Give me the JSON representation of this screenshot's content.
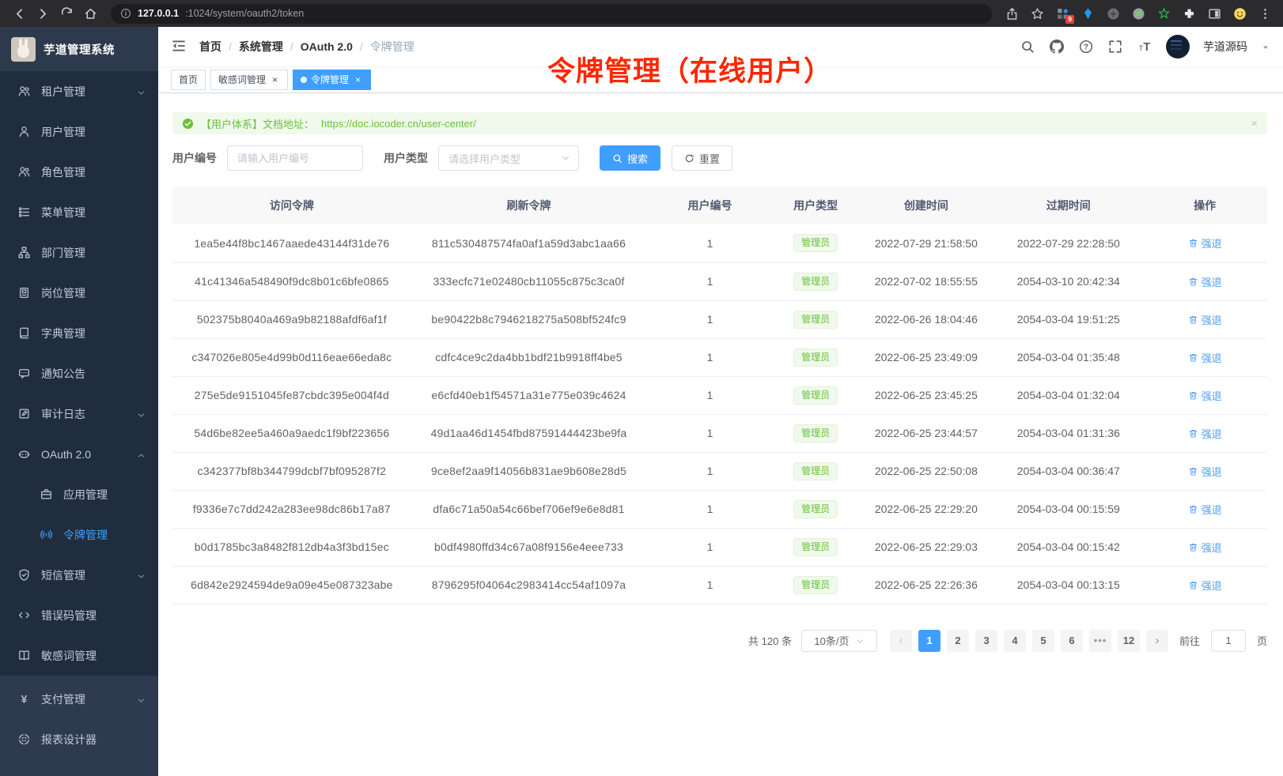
{
  "browser": {
    "url_host": "127.0.0.1",
    "url_path": ":1024/system/oauth2/token",
    "nav_icons": [
      "back-icon",
      "forward-icon",
      "reload-icon",
      "home-icon"
    ],
    "info_icon": "info-icon",
    "toolbar_icons": [
      "share-icon",
      "bookmark-star-icon",
      "extensions-badge-icon",
      "kite-icon",
      "dark-circle-icon",
      "record-circle-icon",
      "green-star-icon",
      "puzzle-icon",
      "split-screen-icon",
      "profile-smiley-icon",
      "overflow-menu-icon"
    ],
    "extensions_badge": "9"
  },
  "sidebar": {
    "logo_title": "芋道管理系统",
    "menu": [
      {
        "label": "租户管理",
        "icon": "tenant-users-icon",
        "chevron": "down"
      },
      {
        "label": "用户管理",
        "icon": "user-icon"
      },
      {
        "label": "角色管理",
        "icon": "role-icon"
      },
      {
        "label": "菜单管理",
        "icon": "menu-tree-icon"
      },
      {
        "label": "部门管理",
        "icon": "dept-icon"
      },
      {
        "label": "岗位管理",
        "icon": "post-icon"
      },
      {
        "label": "字典管理",
        "icon": "dict-icon"
      },
      {
        "label": "通知公告",
        "icon": "notice-icon"
      },
      {
        "label": "审计日志",
        "icon": "audit-icon",
        "chevron": "down"
      },
      {
        "label": "OAuth 2.0",
        "icon": "oauth-icon",
        "chevron": "up"
      },
      {
        "label": "应用管理",
        "icon": "app-icon",
        "sub": true
      },
      {
        "label": "令牌管理",
        "icon": "token-icon",
        "sub": true,
        "active": true
      },
      {
        "label": "短信管理",
        "icon": "sms-icon",
        "chevron": "down"
      },
      {
        "label": "错误码管理",
        "icon": "errcode-icon"
      },
      {
        "label": "敏感词管理",
        "icon": "sensitive-icon"
      },
      {
        "label": "支付管理",
        "icon": "pay-icon",
        "chevron": "down",
        "section": "light"
      },
      {
        "label": "报表设计器",
        "icon": "report-icon",
        "section": "light"
      }
    ]
  },
  "navbar": {
    "breadcrumb": [
      "首页",
      "系统管理",
      "OAuth 2.0",
      "令牌管理"
    ],
    "right_icons": [
      "search-icon",
      "github-icon",
      "help-icon",
      "fullscreen-icon",
      "font-size-icon"
    ],
    "user_name": "芋道源码"
  },
  "tabs": [
    {
      "label": "首页",
      "closable": false,
      "active": false
    },
    {
      "label": "敏感词管理",
      "closable": true,
      "active": false
    },
    {
      "label": "令牌管理",
      "closable": true,
      "active": true
    }
  ],
  "annotation": {
    "text": "令牌管理（在线用户）"
  },
  "alert": {
    "text": "【用户体系】文档地址：",
    "link": "https://doc.iocoder.cn/user-center/"
  },
  "filters": {
    "user_id_label": "用户编号",
    "user_id_placeholder": "请输入用户编号",
    "user_type_label": "用户类型",
    "user_type_placeholder": "请选择用户类型",
    "search_label": "搜索",
    "reset_label": "重置"
  },
  "table": {
    "headers": [
      "访问令牌",
      "刷新令牌",
      "用户编号",
      "用户类型",
      "创建时间",
      "过期时间",
      "操作"
    ],
    "action_label": "强退",
    "rows": [
      {
        "access": "1ea5e44f8bc1467aaede43144f31de76",
        "refresh": "811c530487574fa0af1a59d3abc1aa66",
        "user_id": "1",
        "user_type": "管理员",
        "created": "2022-07-29 21:58:50",
        "expires": "2022-07-29 22:28:50"
      },
      {
        "access": "41c41346a548490f9dc8b01c6bfe0865",
        "refresh": "333ecfc71e02480cb11055c875c3ca0f",
        "user_id": "1",
        "user_type": "管理员",
        "created": "2022-07-02 18:55:55",
        "expires": "2054-03-10 20:42:34"
      },
      {
        "access": "502375b8040a469a9b82188afdf6af1f",
        "refresh": "be90422b8c7946218275a508bf524fc9",
        "user_id": "1",
        "user_type": "管理员",
        "created": "2022-06-26 18:04:46",
        "expires": "2054-03-04 19:51:25"
      },
      {
        "access": "c347026e805e4d99b0d116eae66eda8c",
        "refresh": "cdfc4ce9c2da4bb1bdf21b9918ff4be5",
        "user_id": "1",
        "user_type": "管理员",
        "created": "2022-06-25 23:49:09",
        "expires": "2054-03-04 01:35:48"
      },
      {
        "access": "275e5de9151045fe87cbdc395e004f4d",
        "refresh": "e6cfd40eb1f54571a31e775e039c4624",
        "user_id": "1",
        "user_type": "管理员",
        "created": "2022-06-25 23:45:25",
        "expires": "2054-03-04 01:32:04"
      },
      {
        "access": "54d6be82ee5a460a9aedc1f9bf223656",
        "refresh": "49d1aa46d1454fbd87591444423be9fa",
        "user_id": "1",
        "user_type": "管理员",
        "created": "2022-06-25 23:44:57",
        "expires": "2054-03-04 01:31:36"
      },
      {
        "access": "c342377bf8b344799dcbf7bf095287f2",
        "refresh": "9ce8ef2aa9f14056b831ae9b608e28d5",
        "user_id": "1",
        "user_type": "管理员",
        "created": "2022-06-25 22:50:08",
        "expires": "2054-03-04 00:36:47"
      },
      {
        "access": "f9336e7c7dd242a283ee98dc86b17a87",
        "refresh": "dfa6c71a50a54c66bef706ef9e6e8d81",
        "user_id": "1",
        "user_type": "管理员",
        "created": "2022-06-25 22:29:20",
        "expires": "2054-03-04 00:15:59"
      },
      {
        "access": "b0d1785bc3a8482f812db4a3f3bd15ec",
        "refresh": "b0df4980ffd34c67a08f9156e4eee733",
        "user_id": "1",
        "user_type": "管理员",
        "created": "2022-06-25 22:29:03",
        "expires": "2054-03-04 00:15:42"
      },
      {
        "access": "6d842e2924594de9a09e45e087323abe",
        "refresh": "8796295f04064c2983414cc54af1097a",
        "user_id": "1",
        "user_type": "管理员",
        "created": "2022-06-25 22:26:36",
        "expires": "2054-03-04 00:13:15"
      }
    ]
  },
  "pagination": {
    "total": "共 120 条",
    "page_size": "10条/页",
    "pages": [
      "1",
      "2",
      "3",
      "4",
      "5",
      "6",
      "•••",
      "12"
    ],
    "active_page": "1",
    "prev": "‹",
    "next": "›",
    "goto_label": "前往",
    "goto_value": "1",
    "goto_suffix": "页"
  },
  "colors": {
    "primary": "#409eff",
    "success": "#67c23a",
    "annotation_red": "#ff2600",
    "sidebar_dark": "#1f2d3d",
    "sidebar_light": "#2d3a4f"
  }
}
